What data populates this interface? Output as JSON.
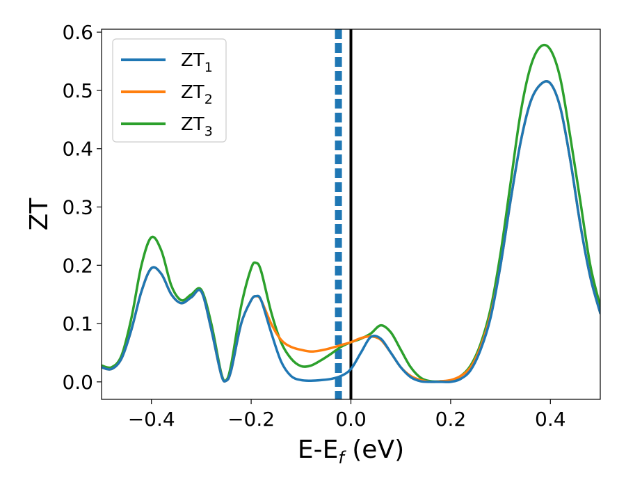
{
  "chart_data": {
    "type": "line",
    "xlabel": {
      "main": "E-E",
      "sub": "f",
      "suffix": " (eV)"
    },
    "ylabel": "ZT",
    "xlim": [
      -0.5,
      0.5
    ],
    "ylim": [
      -0.03,
      0.605
    ],
    "xticks": [
      {
        "value": -0.4,
        "label": "−0.4"
      },
      {
        "value": -0.2,
        "label": "−0.2"
      },
      {
        "value": 0.0,
        "label": "0.0"
      },
      {
        "value": 0.2,
        "label": "0.2"
      },
      {
        "value": 0.4,
        "label": "0.4"
      }
    ],
    "yticks": [
      {
        "value": 0.0,
        "label": "0.0"
      },
      {
        "value": 0.1,
        "label": "0.1"
      },
      {
        "value": 0.2,
        "label": "0.2"
      },
      {
        "value": 0.3,
        "label": "0.3"
      },
      {
        "value": 0.4,
        "label": "0.4"
      },
      {
        "value": 0.5,
        "label": "0.5"
      },
      {
        "value": 0.6,
        "label": "0.6"
      }
    ],
    "grid": false,
    "legend": "top-left",
    "vlines": [
      {
        "x": -0.025,
        "style": "dashed",
        "color": "#1f77b4"
      },
      {
        "x": 0.0,
        "style": "solid",
        "color": "#000000"
      }
    ],
    "series": [
      {
        "legend": {
          "main": "ZT",
          "sub": "1"
        },
        "color": "#1f77b4",
        "x": [
          -0.5,
          -0.48,
          -0.46,
          -0.44,
          -0.42,
          -0.4,
          -0.38,
          -0.36,
          -0.34,
          -0.32,
          -0.3,
          -0.28,
          -0.26,
          -0.25,
          -0.24,
          -0.22,
          -0.2,
          -0.19,
          -0.18,
          -0.16,
          -0.14,
          -0.12,
          -0.1,
          -0.08,
          -0.06,
          -0.04,
          -0.02,
          0.0,
          0.02,
          0.04,
          0.06,
          0.08,
          0.1,
          0.12,
          0.14,
          0.16,
          0.18,
          0.2,
          0.22,
          0.24,
          0.26,
          0.28,
          0.3,
          0.32,
          0.34,
          0.36,
          0.38,
          0.4,
          0.42,
          0.44,
          0.46,
          0.48,
          0.5
        ],
        "y": [
          0.025,
          0.022,
          0.04,
          0.09,
          0.155,
          0.195,
          0.185,
          0.15,
          0.135,
          0.145,
          0.155,
          0.09,
          0.012,
          0.002,
          0.02,
          0.1,
          0.14,
          0.147,
          0.14,
          0.085,
          0.035,
          0.01,
          0.003,
          0.002,
          0.003,
          0.005,
          0.01,
          0.022,
          0.05,
          0.077,
          0.074,
          0.05,
          0.025,
          0.008,
          0.001,
          0.0,
          0.0,
          0.0,
          0.005,
          0.02,
          0.055,
          0.11,
          0.2,
          0.31,
          0.41,
          0.48,
          0.51,
          0.512,
          0.47,
          0.38,
          0.27,
          0.18,
          0.118
        ]
      },
      {
        "legend": {
          "main": "ZT",
          "sub": "2"
        },
        "color": "#ff7f0e",
        "x": [
          -0.5,
          -0.48,
          -0.46,
          -0.44,
          -0.42,
          -0.4,
          -0.38,
          -0.36,
          -0.34,
          -0.32,
          -0.3,
          -0.28,
          -0.26,
          -0.25,
          -0.24,
          -0.22,
          -0.2,
          -0.19,
          -0.18,
          -0.16,
          -0.14,
          -0.12,
          -0.1,
          -0.08,
          -0.06,
          -0.04,
          -0.02,
          0.0,
          0.02,
          0.04,
          0.06,
          0.08,
          0.1,
          0.12,
          0.14,
          0.16,
          0.18,
          0.2,
          0.22,
          0.24,
          0.26,
          0.28,
          0.3,
          0.32,
          0.34,
          0.36,
          0.38,
          0.4,
          0.42,
          0.44,
          0.46,
          0.48,
          0.5
        ],
        "y": [
          0.025,
          0.022,
          0.04,
          0.09,
          0.155,
          0.195,
          0.185,
          0.15,
          0.135,
          0.145,
          0.155,
          0.09,
          0.012,
          0.002,
          0.02,
          0.1,
          0.14,
          0.147,
          0.14,
          0.1,
          0.072,
          0.06,
          0.055,
          0.052,
          0.054,
          0.058,
          0.063,
          0.068,
          0.075,
          0.078,
          0.072,
          0.05,
          0.025,
          0.01,
          0.003,
          0.0,
          0.001,
          0.003,
          0.01,
          0.025,
          0.06,
          0.115,
          0.2,
          0.31,
          0.41,
          0.48,
          0.51,
          0.512,
          0.47,
          0.38,
          0.27,
          0.18,
          0.118
        ]
      },
      {
        "legend": {
          "main": "ZT",
          "sub": "3"
        },
        "color": "#2ca02c",
        "x": [
          -0.5,
          -0.48,
          -0.46,
          -0.44,
          -0.42,
          -0.4,
          -0.38,
          -0.36,
          -0.34,
          -0.32,
          -0.3,
          -0.28,
          -0.26,
          -0.25,
          -0.24,
          -0.22,
          -0.2,
          -0.19,
          -0.18,
          -0.16,
          -0.14,
          -0.12,
          -0.1,
          -0.08,
          -0.06,
          -0.04,
          -0.02,
          0.0,
          0.02,
          0.04,
          0.06,
          0.08,
          0.1,
          0.12,
          0.14,
          0.16,
          0.18,
          0.2,
          0.22,
          0.24,
          0.26,
          0.28,
          0.3,
          0.32,
          0.34,
          0.36,
          0.38,
          0.4,
          0.42,
          0.44,
          0.46,
          0.48,
          0.5
        ],
        "y": [
          0.028,
          0.025,
          0.045,
          0.11,
          0.2,
          0.248,
          0.225,
          0.165,
          0.14,
          0.15,
          0.158,
          0.1,
          0.015,
          0.003,
          0.03,
          0.13,
          0.195,
          0.204,
          0.19,
          0.12,
          0.068,
          0.04,
          0.027,
          0.028,
          0.037,
          0.048,
          0.06,
          0.068,
          0.074,
          0.083,
          0.097,
          0.085,
          0.055,
          0.025,
          0.007,
          0.001,
          0.001,
          0.002,
          0.01,
          0.028,
          0.065,
          0.125,
          0.22,
          0.34,
          0.46,
          0.54,
          0.575,
          0.57,
          0.52,
          0.42,
          0.31,
          0.2,
          0.13
        ]
      }
    ]
  }
}
